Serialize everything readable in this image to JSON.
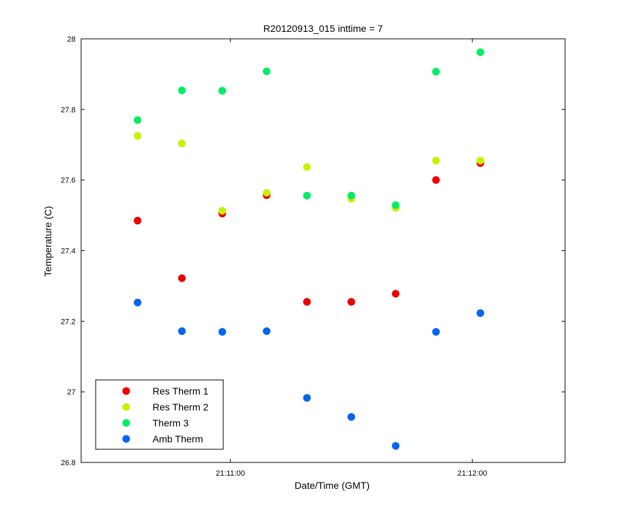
{
  "chart_data": {
    "type": "scatter",
    "title": "R20120913_015 inttime = 7",
    "xlabel": "Date/Time (GMT)",
    "ylabel": "Temperature (C)",
    "xlim": [
      "21:10:23",
      "21:12:23"
    ],
    "ylim": [
      26.8,
      28.0
    ],
    "x_ticks": [
      "21:11:00",
      "21:12:00"
    ],
    "y_ticks": [
      "26.8",
      "27",
      "27.2",
      "27.4",
      "27.6",
      "27.8",
      "28"
    ],
    "grid": false,
    "legend_position": "bottom-left",
    "x": [
      "21:10:37",
      "21:10:48",
      "21:10:58",
      "21:11:09",
      "21:11:19",
      "21:11:30",
      "21:11:41",
      "21:11:51",
      "21:12:02"
    ],
    "series": [
      {
        "name": "Res Therm 1",
        "color": "#ee0000",
        "points": [
          [
            "21:10:37",
            27.485
          ],
          [
            "21:10:48",
            27.322
          ],
          [
            "21:10:58",
            27.505
          ],
          [
            "21:11:09",
            27.557
          ],
          [
            "21:11:19",
            27.255
          ],
          [
            "21:11:30",
            27.255
          ],
          [
            "21:11:41",
            27.278
          ],
          [
            "21:11:51",
            27.6
          ],
          [
            "21:12:02",
            27.648
          ]
        ]
      },
      {
        "name": "Res Therm 2",
        "color": "#ccee00",
        "points": [
          [
            "21:10:37",
            27.725
          ],
          [
            "21:10:48",
            27.704
          ],
          [
            "21:10:58",
            27.513
          ],
          [
            "21:11:09",
            27.564
          ],
          [
            "21:11:19",
            27.637
          ],
          [
            "21:11:30",
            27.547
          ],
          [
            "21:11:41",
            27.521
          ],
          [
            "21:11:51",
            27.655
          ],
          [
            "21:12:02",
            27.655
          ]
        ]
      },
      {
        "name": "Therm 3",
        "color": "#00ee66",
        "points": [
          [
            "21:10:37",
            27.77
          ],
          [
            "21:10:48",
            27.854
          ],
          [
            "21:10:58",
            27.853
          ],
          [
            "21:11:09",
            27.908
          ],
          [
            "21:11:19",
            27.556
          ],
          [
            "21:11:30",
            27.556
          ],
          [
            "21:11:41",
            27.529
          ],
          [
            "21:11:51",
            27.907
          ],
          [
            "21:12:02",
            27.962
          ]
        ]
      },
      {
        "name": "Amb Therm",
        "color": "#0066ee",
        "points": [
          [
            "21:10:37",
            27.253
          ],
          [
            "21:10:48",
            27.172
          ],
          [
            "21:10:58",
            27.17
          ],
          [
            "21:11:09",
            27.172
          ],
          [
            "21:11:19",
            26.983
          ],
          [
            "21:11:30",
            26.929
          ],
          [
            "21:11:41",
            26.847
          ],
          [
            "21:11:51",
            27.17
          ],
          [
            "21:12:02",
            27.223
          ]
        ]
      }
    ]
  }
}
